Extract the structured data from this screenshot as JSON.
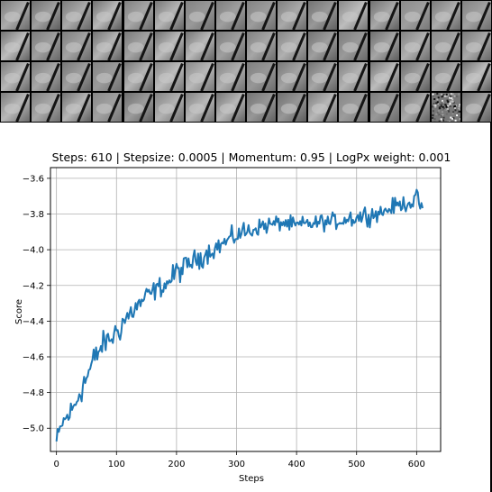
{
  "thumbnail_grid": {
    "rows": 4,
    "columns": 16,
    "noisy_cells": [
      [
        3,
        14
      ]
    ]
  },
  "chart_data": {
    "type": "line",
    "title": "Steps: 610 | Stepsize: 0.0005 | Momentum: 0.95 | LogPx weight: 0.001",
    "xlabel": "Steps",
    "ylabel": "Score",
    "xlim": [
      -10,
      640
    ],
    "ylim": [
      -5.13,
      -3.54
    ],
    "xticks": [
      0,
      100,
      200,
      300,
      400,
      500,
      600
    ],
    "xtick_labels": [
      "0",
      "100",
      "200",
      "300",
      "400",
      "500",
      "600"
    ],
    "yticks": [
      -5.0,
      -4.8,
      -4.6,
      -4.4,
      -4.2,
      -4.0,
      -3.8,
      -3.6
    ],
    "ytick_labels": [
      "−5.0",
      "−4.8",
      "−4.6",
      "−4.4",
      "−4.2",
      "−4.0",
      "−3.8",
      "−3.6"
    ],
    "grid": true,
    "line_color": "#1f77b4",
    "series": [
      {
        "x": [
          0,
          10,
          20,
          30,
          40,
          50,
          60,
          70,
          80,
          90,
          100,
          110,
          120,
          130,
          140,
          150,
          160,
          170,
          180,
          190,
          200,
          210,
          220,
          230,
          240,
          250,
          260,
          270,
          280,
          290,
          300,
          310,
          320,
          330,
          340,
          350,
          360,
          370,
          380,
          390,
          400,
          410,
          420,
          430,
          440,
          450,
          460,
          470,
          480,
          490,
          500,
          510,
          520,
          530,
          540,
          550,
          560,
          570,
          580,
          590,
          600,
          610
        ],
        "y": [
          -5.08,
          -4.97,
          -4.93,
          -4.88,
          -4.78,
          -4.72,
          -4.64,
          -4.57,
          -4.52,
          -4.5,
          -4.46,
          -4.41,
          -4.37,
          -4.33,
          -4.3,
          -4.26,
          -4.24,
          -4.21,
          -4.2,
          -4.17,
          -4.12,
          -4.11,
          -4.08,
          -4.06,
          -4.04,
          -4.02,
          -4.0,
          -3.98,
          -3.96,
          -3.94,
          -3.92,
          -3.9,
          -3.9,
          -3.88,
          -3.87,
          -3.86,
          -3.86,
          -3.85,
          -3.85,
          -3.86,
          -3.87,
          -3.86,
          -3.85,
          -3.86,
          -3.84,
          -3.85,
          -3.84,
          -3.84,
          -3.83,
          -3.82,
          -3.82,
          -3.81,
          -3.8,
          -3.8,
          -3.79,
          -3.78,
          -3.76,
          -3.75,
          -3.74,
          -3.73,
          -3.72,
          -3.76
        ],
        "noise": [
          0.06,
          0.05,
          0.06,
          0.07,
          0.08,
          0.08,
          0.08,
          0.07,
          0.06,
          0.06,
          0.07,
          0.08,
          0.07,
          0.06,
          0.05,
          0.05,
          0.05,
          0.05,
          0.05,
          0.05,
          0.06,
          0.06,
          0.05,
          0.05,
          0.06,
          0.05,
          0.05,
          0.05,
          0.04,
          0.05,
          0.05,
          0.05,
          0.06,
          0.04,
          0.04,
          0.05,
          0.04,
          0.04,
          0.04,
          0.04,
          0.05,
          0.04,
          0.04,
          0.04,
          0.04,
          0.04,
          0.04,
          0.04,
          0.04,
          0.05,
          0.05,
          0.05,
          0.05,
          0.04,
          0.04,
          0.04,
          0.04,
          0.04,
          0.04,
          0.05,
          0.05,
          0.04
        ]
      }
    ]
  }
}
